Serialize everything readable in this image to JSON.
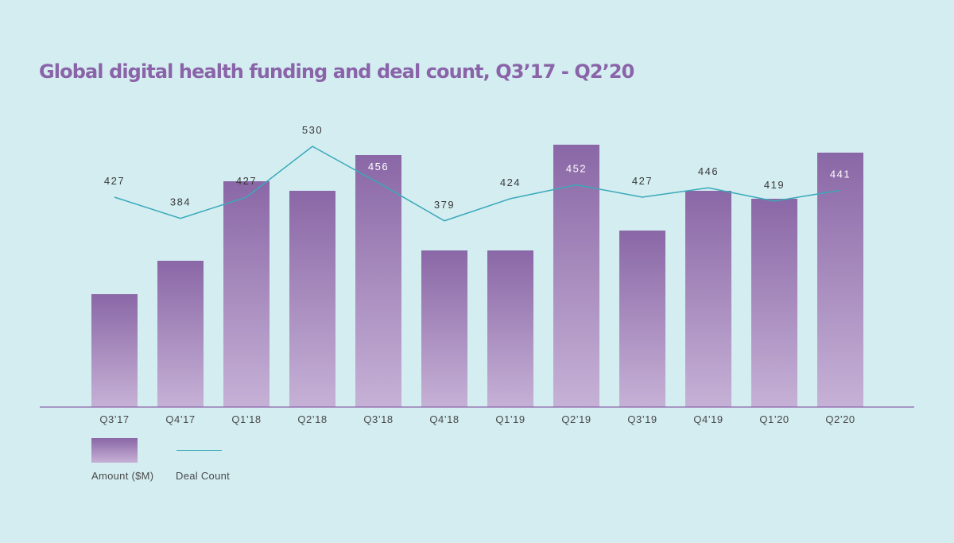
{
  "chart_data": {
    "type": "bar",
    "title": "Global digital health funding and deal count, Q3’17 - Q2’20",
    "categories": [
      "Q3’17",
      "Q4’17",
      "Q1’18",
      "Q2’18",
      "Q3’18",
      "Q4’18",
      "Q1’19",
      "Q2’19",
      "Q3’19",
      "Q4’19",
      "Q1’20",
      "Q2’20"
    ],
    "series": [
      {
        "name": "Amount ($M)",
        "type": "bar",
        "values": [
          142,
          184,
          284,
          272,
          317,
          197,
          197,
          330,
          222,
          272,
          262,
          320
        ]
      },
      {
        "name": "Deal Count",
        "type": "line",
        "values": [
          427,
          384,
          427,
          530,
          456,
          379,
          424,
          452,
          427,
          446,
          419,
          441
        ]
      }
    ],
    "legend_position": "bottom-left",
    "grid": false
  },
  "colors": {
    "background": "#d3edf1",
    "title": "#8a63a8",
    "bar_top": "#8a67a6",
    "bar_bottom": "#c6b1d6",
    "line": "#3aa9b9",
    "axis": "#8a63a8",
    "label_dark": "#3a3a3a",
    "label_light": "#ffffff"
  }
}
